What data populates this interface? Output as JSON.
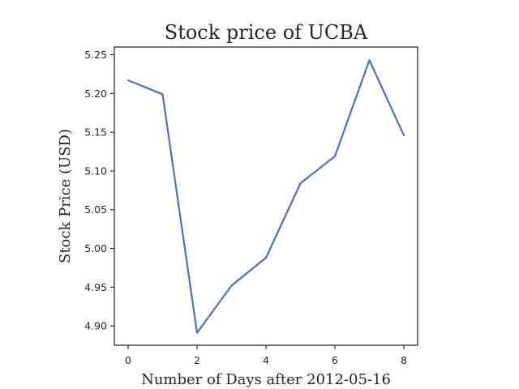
{
  "chart_data": {
    "type": "line",
    "title": "Stock price of UCBA",
    "xlabel": "Number of Days after 2012-05-16",
    "ylabel": "Stock Price (USD)",
    "x": [
      0,
      1,
      2,
      3,
      4,
      5,
      6,
      7,
      8
    ],
    "series": [
      {
        "values": [
          5.217,
          5.199,
          4.891,
          4.952,
          4.988,
          5.084,
          5.119,
          5.243,
          5.146
        ],
        "color": "#4c6fcc"
      }
    ],
    "xlim": [
      -0.4,
      8.4
    ],
    "ylim": [
      4.875,
      5.26
    ],
    "xticks": [
      0,
      2,
      4,
      6,
      8
    ],
    "xtick_labels": [
      "0",
      "2",
      "4",
      "6",
      "8"
    ],
    "yticks": [
      4.9,
      4.95,
      5.0,
      5.05,
      5.1,
      5.15,
      5.2,
      5.25
    ],
    "ytick_labels": [
      "4.90",
      "4.95",
      "5.00",
      "5.05",
      "5.10",
      "5.15",
      "5.20",
      "5.25"
    ],
    "grid": false,
    "legend": false
  }
}
